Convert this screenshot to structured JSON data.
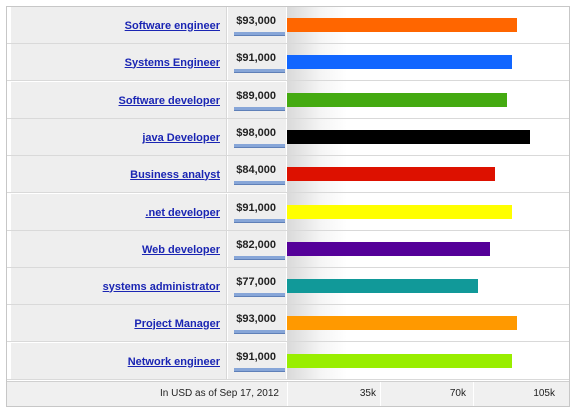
{
  "chart_data": {
    "type": "bar",
    "orientation": "horizontal",
    "categories": [
      "Software engineer",
      "Systems Engineer",
      "Software developer",
      "java Developer",
      "Business analyst",
      ".net developer",
      "Web developer",
      "systems administrator",
      "Project Manager",
      "Network engineer"
    ],
    "values": [
      93000,
      91000,
      89000,
      98000,
      84000,
      91000,
      82000,
      77000,
      93000,
      91000
    ],
    "value_labels": [
      "$93,000",
      "$91,000",
      "$89,000",
      "$98,000",
      "$84,000",
      "$91,000",
      "$82,000",
      "$77,000",
      "$93,000",
      "$91,000"
    ],
    "colors": [
      "#ff6600",
      "#1166ff",
      "#44aa11",
      "#000000",
      "#dd1100",
      "#ffff00",
      "#550099",
      "#119999",
      "#ff9900",
      "#99ee00"
    ],
    "xlim": [
      0,
      105000
    ],
    "x_ticks": [
      35000,
      70000,
      105000
    ],
    "x_tick_labels": [
      "35k",
      "70k",
      "105k"
    ],
    "footnote": "In USD as of Sep 17, 2012",
    "grid": false,
    "legend": "none"
  }
}
